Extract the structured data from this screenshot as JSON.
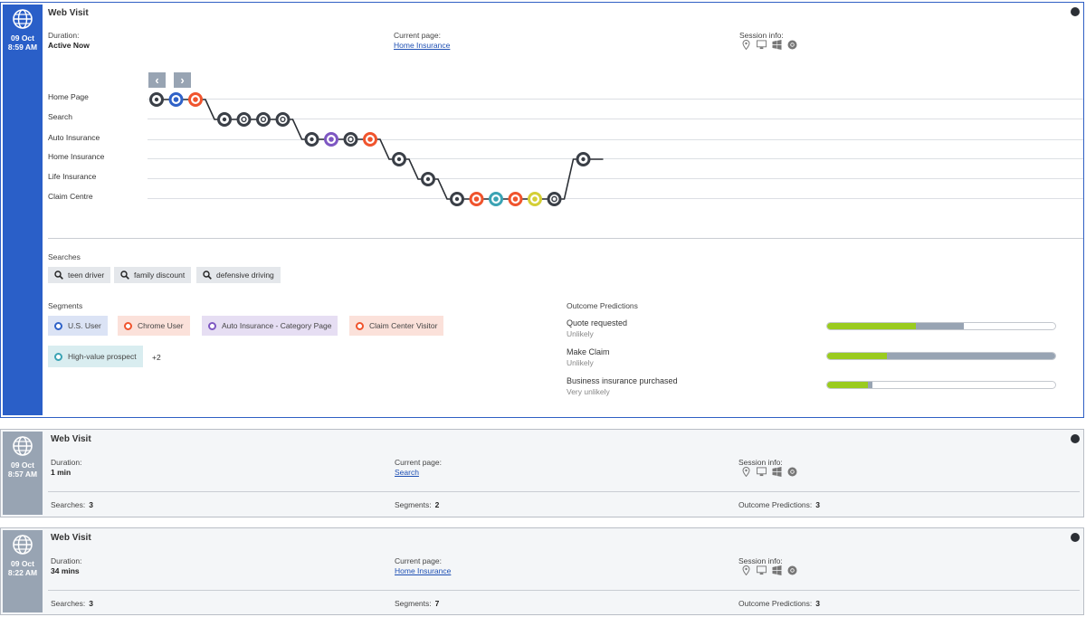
{
  "visits": [
    {
      "date": "09 Oct",
      "time": "8:59 AM",
      "title": "Web Visit",
      "duration_label": "Duration:",
      "duration": "Active Now",
      "current_page_label": "Current page:",
      "current_page": "Home Insurance",
      "session_label": "Session info:"
    },
    {
      "date": "09 Oct",
      "time": "8:57 AM",
      "title": "Web Visit",
      "duration_label": "Duration:",
      "duration": "1 min",
      "current_page_label": "Current page:",
      "current_page": "Search",
      "session_label": "Session info:",
      "searches_label": "Searches:",
      "searches_count": "3",
      "segments_label": "Segments:",
      "segments_count": "2",
      "outcome_label": "Outcome Predictions:",
      "outcome_count": "3"
    },
    {
      "date": "09 Oct",
      "time": "8:22 AM",
      "title": "Web Visit",
      "duration_label": "Duration:",
      "duration": "34 mins",
      "current_page_label": "Current page:",
      "current_page": "Home Insurance",
      "session_label": "Session info:",
      "searches_label": "Searches:",
      "searches_count": "3",
      "segments_label": "Segments:",
      "segments_count": "7",
      "outcome_label": "Outcome Predictions:",
      "outcome_count": "3"
    }
  ],
  "session_icons": [
    "location-icon",
    "desktop-icon",
    "windows-icon",
    "chrome-icon"
  ],
  "journey": {
    "rows": [
      "Home Page",
      "Search",
      "Auto Insurance",
      "Home Insurance",
      "Life Insurance",
      "Claim Centre"
    ],
    "nodes": [
      {
        "row": 0,
        "color": "#3a3f47",
        "icon": "page-icon"
      },
      {
        "row": 0,
        "color": "#2f62c8",
        "icon": "segment-icon"
      },
      {
        "row": 0,
        "color": "#f0542d",
        "icon": "segment-icon"
      },
      {
        "row": 1,
        "color": "#3a3f47",
        "icon": "page-icon"
      },
      {
        "row": 1,
        "color": "#3a3f47",
        "icon": "search-icon"
      },
      {
        "row": 1,
        "color": "#3a3f47",
        "icon": "search-icon"
      },
      {
        "row": 1,
        "color": "#3a3f47",
        "icon": "search-icon"
      },
      {
        "row": 2,
        "color": "#3a3f47",
        "icon": "page-icon"
      },
      {
        "row": 2,
        "color": "#7e57c2",
        "icon": "segment-icon"
      },
      {
        "row": 2,
        "color": "#3a3f47",
        "icon": "outcome-icon"
      },
      {
        "row": 2,
        "color": "#f0542d",
        "icon": "segment-icon"
      },
      {
        "row": 3,
        "color": "#3a3f47",
        "icon": "page-icon"
      },
      {
        "row": 4,
        "color": "#3a3f47",
        "icon": "page-icon"
      },
      {
        "row": 5,
        "color": "#3a3f47",
        "icon": "page-icon"
      },
      {
        "row": 5,
        "color": "#f0542d",
        "icon": "segment-icon"
      },
      {
        "row": 5,
        "color": "#3aa3b4",
        "icon": "segment-icon"
      },
      {
        "row": 5,
        "color": "#f0542d",
        "icon": "segment-icon"
      },
      {
        "row": 5,
        "color": "#d4cf36",
        "icon": "segment-icon"
      },
      {
        "row": 5,
        "color": "#3a3f47",
        "icon": "outcome-icon"
      },
      {
        "row": 3,
        "color": "#3a3f47",
        "icon": "page-icon"
      }
    ]
  },
  "searches": {
    "label": "Searches",
    "items": [
      "teen driver",
      "family discount",
      "defensive driving"
    ]
  },
  "segments": {
    "label": "Segments",
    "items": [
      {
        "label": "U.S. User",
        "color": "#2f62c8",
        "bg": "#dbe3f5"
      },
      {
        "label": "Chrome User",
        "color": "#f0542d",
        "bg": "#fbe1da"
      },
      {
        "label": "Auto Insurance - Category Page",
        "color": "#7e57c2",
        "bg": "#e6def3"
      },
      {
        "label": "Claim Center Visitor",
        "color": "#f0542d",
        "bg": "#fbe1da"
      },
      {
        "label": "High-value prospect",
        "color": "#3aa3b4",
        "bg": "#d9edf0"
      }
    ],
    "more": "+2"
  },
  "outcomes": {
    "label": "Outcome Predictions",
    "items": [
      {
        "name": "Quote requested",
        "likelihood": "Unlikely",
        "green": 0.39,
        "grey": 0.21
      },
      {
        "name": "Make Claim",
        "likelihood": "Unlikely",
        "green": 0.26,
        "grey": 0.74
      },
      {
        "name": "Business insurance purchased",
        "likelihood": "Very unlikely",
        "green": 0.18,
        "grey": 0.02
      }
    ]
  },
  "colors": {
    "accent": "#2a5fc8",
    "rail_inactive": "#98a4b3",
    "bar_green": "#9acb1f"
  }
}
